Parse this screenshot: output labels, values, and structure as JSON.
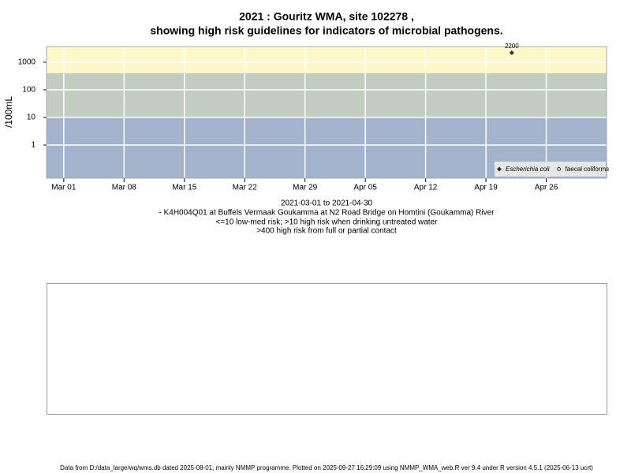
{
  "chart_data": {
    "type": "scatter",
    "title": [
      "2021 : Gouritz WMA, site 102278 ,",
      "showing high risk guidelines for indicators of microbial pathogens."
    ],
    "ylabel": "/100mL",
    "notes": [
      "2021-03-01 to 2021-04-30",
      "- K4H004Q01 at Buffels Vermaak Goukamma at N2 Road Bridge on Homtini (Goukamma) River",
      "<=10 low-med risk; >10 high risk when drinking untreated water",
      ">400 high risk from full or partial contact"
    ],
    "log_y": true,
    "grid": true,
    "xlim": [
      "2021-02-27",
      "2021-05-03"
    ],
    "xticks": [
      {
        "value": "2021-03-01",
        "label": "Mar 01"
      },
      {
        "value": "2021-03-08",
        "label": "Mar 08"
      },
      {
        "value": "2021-03-15",
        "label": "Mar 15"
      },
      {
        "value": "2021-03-22",
        "label": "Mar 22"
      },
      {
        "value": "2021-03-29",
        "label": "Mar 29"
      },
      {
        "value": "2021-04-05",
        "label": "Apr 05"
      },
      {
        "value": "2021-04-12",
        "label": "Apr 12"
      },
      {
        "value": "2021-04-19",
        "label": "Apr 19"
      },
      {
        "value": "2021-04-26",
        "label": "Apr 26"
      }
    ],
    "ylim": [
      0.063,
      3700
    ],
    "yticks": [
      1,
      10,
      100,
      1000
    ],
    "thresholds": [
      10,
      400
    ],
    "band_colors": [
      "#a3b3cb",
      "#c3ccc1",
      "#fdf8c9"
    ],
    "legend": "bottom-right",
    "series": [
      {
        "name": "Escherichia coli",
        "color": "#333333",
        "marker": "diamond-filled",
        "italic": true,
        "x": [
          "2021-04-22"
        ],
        "values": [
          2200
        ]
      },
      {
        "name": "faecal coliforms",
        "color": "#333333",
        "marker": "circle-open",
        "italic": false,
        "x": [],
        "values": []
      }
    ]
  },
  "footer": "Data from D:/data_large/wq/wms.db dated 2025-08-01, mainly NMMP programme. Plotted on 2025-09-27 16:29:09 using NMMP_WMA_web.R ver 9.4 under R version 4.5.1 (2025-06-13 ucrt)"
}
